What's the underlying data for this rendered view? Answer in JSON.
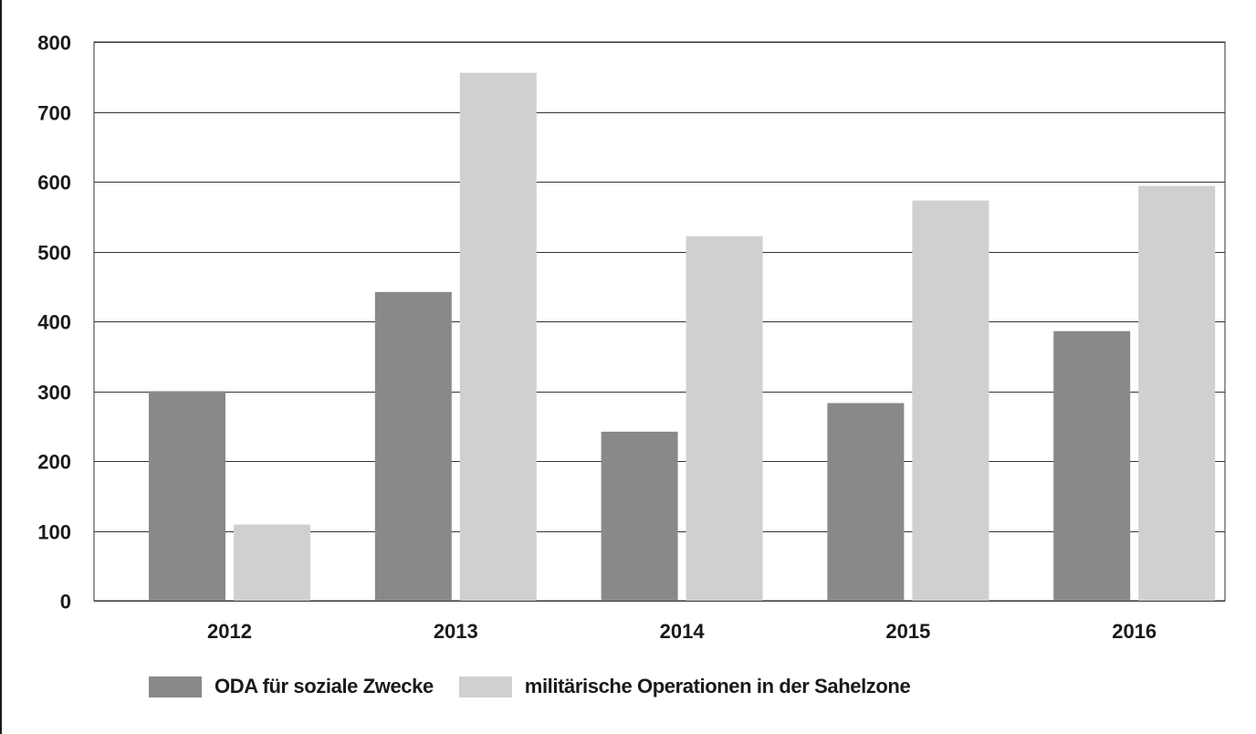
{
  "colors": {
    "series_dark": "#898989",
    "series_light": "#cfd0cf",
    "grid": "#333333",
    "text": "#1a1a1a"
  },
  "chart_data": {
    "type": "bar",
    "title": "",
    "xlabel": "",
    "ylabel": "",
    "categories": [
      "2012",
      "2013",
      "2014",
      "2015",
      "2016"
    ],
    "series": [
      {
        "name": "ODA für soziale Zwecke",
        "color": "#898989",
        "values": [
          300,
          442,
          242,
          283,
          386
        ]
      },
      {
        "name": "militärische Operationen in der Sahelzone",
        "color": "#cfd0cf",
        "values": [
          109,
          756,
          522,
          573,
          594
        ]
      }
    ],
    "ylim": [
      0,
      800
    ],
    "yticks": [
      "0",
      "100",
      "200",
      "300",
      "400",
      "500",
      "600",
      "700",
      "800"
    ],
    "grid": true,
    "legend_position": "bottom-left"
  }
}
